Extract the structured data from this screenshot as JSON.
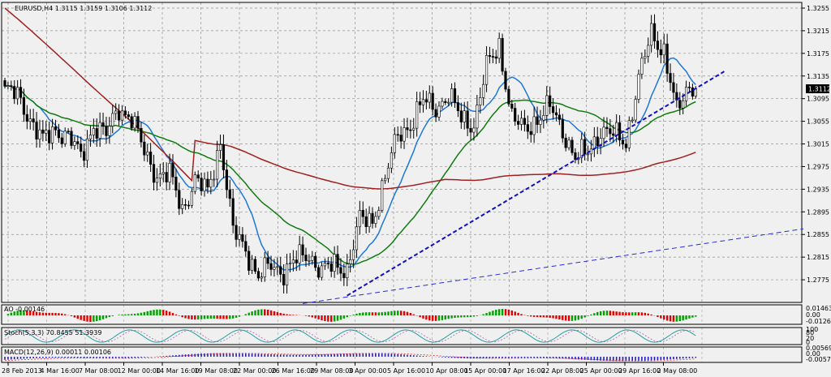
{
  "chart_data": {
    "type": "candlestick",
    "symbol_line": "EURUSD,H4  1.3115 1.3159 1.3106 1.3112",
    "current_price": "1.3112",
    "main": {
      "ylim": [
        1.2735,
        1.3265
      ],
      "y_ticks": [
        "1.3255",
        "1.3215",
        "1.3175",
        "1.3135",
        "1.3095",
        "1.3055",
        "1.3015",
        "1.2975",
        "1.2935",
        "1.2895",
        "1.2855",
        "1.2815",
        "1.2775"
      ],
      "x_labels": [
        "28 Feb 2013",
        "4 Mar 16:00",
        "7 Mar 08:00",
        "12 Mar 00:00",
        "14 Mar 16:00",
        "19 Mar 08:00",
        "22 Mar 00:00",
        "26 Mar 16:00",
        "29 Mar 08:00",
        "3 Apr 00:00",
        "5 Apr 16:00",
        "10 Apr 08:00",
        "15 Apr 00:00",
        "17 Apr 16:00",
        "22 Apr 08:00",
        "25 Apr 00:00",
        "29 Apr 16:00",
        "2 May 08:00"
      ],
      "anchors": [
        [
          0,
          1.311
        ],
        [
          4,
          1.31
        ],
        [
          8,
          1.306
        ],
        [
          12,
          1.302
        ],
        [
          16,
          1.304
        ],
        [
          20,
          1.303
        ],
        [
          24,
          1.299
        ],
        [
          28,
          1.305
        ],
        [
          32,
          1.303
        ],
        [
          36,
          1.308
        ],
        [
          40,
          1.306
        ],
        [
          44,
          1.3
        ],
        [
          48,
          1.296
        ],
        [
          52,
          1.296
        ],
        [
          56,
          1.29
        ],
        [
          60,
          1.295
        ],
        [
          64,
          1.293
        ],
        [
          68,
          1.302
        ],
        [
          72,
          1.286
        ],
        [
          76,
          1.283
        ],
        [
          80,
          1.278
        ],
        [
          84,
          1.28
        ],
        [
          88,
          1.279
        ],
        [
          92,
          1.281
        ],
        [
          96,
          1.282
        ],
        [
          100,
          1.279
        ],
        [
          104,
          1.28
        ],
        [
          108,
          1.2795
        ],
        [
          112,
          1.288
        ],
        [
          116,
          1.288
        ],
        [
          120,
          1.2955
        ],
        [
          124,
          1.303
        ],
        [
          128,
          1.305
        ],
        [
          132,
          1.309
        ],
        [
          136,
          1.308
        ],
        [
          140,
          1.31
        ],
        [
          144,
          1.306
        ],
        [
          148,
          1.305
        ],
        [
          152,
          1.315
        ],
        [
          156,
          1.319
        ],
        [
          160,
          1.306
        ],
        [
          164,
          1.304
        ],
        [
          168,
          1.306
        ],
        [
          172,
          1.308
        ],
        [
          176,
          1.304
        ],
        [
          180,
          1.299
        ],
        [
          184,
          1.3
        ],
        [
          188,
          1.304
        ],
        [
          192,
          1.303
        ],
        [
          196,
          1.302
        ],
        [
          200,
          1.313
        ],
        [
          204,
          1.321
        ],
        [
          208,
          1.318
        ],
        [
          212,
          1.307
        ],
        [
          216,
          1.312
        ],
        [
          218,
          1.3112
        ]
      ],
      "ma_series": [
        {
          "color": "#1e78d8",
          "period": 12
        },
        {
          "color": "#107c10",
          "period": 36
        },
        {
          "color": "#a02020",
          "period": 140
        }
      ],
      "trendlines": [
        {
          "style": "dashed",
          "color": "#1010c0",
          "from": [
            108,
            1.2747
          ],
          "to": [
            227,
            1.3143
          ]
        },
        {
          "style": "dashed-thin",
          "color": "#2a2ae0",
          "from": [
            94,
            1.2733
          ],
          "to": [
            252,
            1.2865
          ]
        }
      ]
    },
    "ao": {
      "label": "AO -0.00146",
      "ticks": [
        "0.01463",
        "0.00",
        "-0.01268"
      ]
    },
    "stoch": {
      "label": "Stoch(5,3,3) 70.8455 51.3939",
      "ticks": [
        "100",
        "80",
        "20",
        "0"
      ]
    },
    "macd": {
      "label": "MACD(12,26,9) 0.00011 0.00106",
      "ticks": [
        "0.00569",
        "0.00",
        "-0.00573"
      ]
    }
  }
}
